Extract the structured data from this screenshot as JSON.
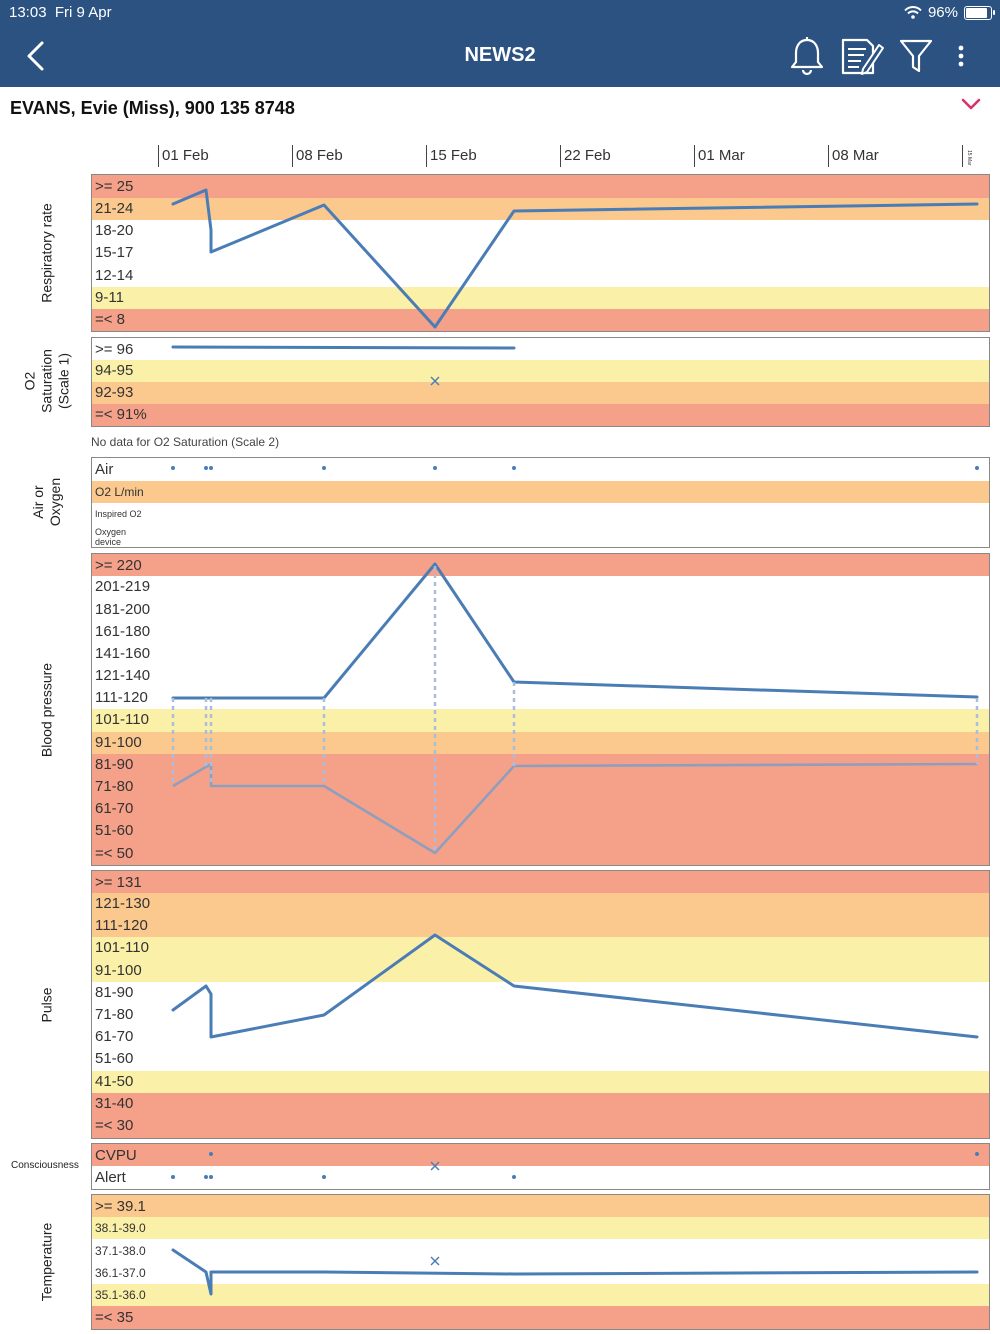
{
  "status_bar": {
    "time": "13:03",
    "date": "Fri 9 Apr",
    "battery": "96%",
    "wifi_icon": "wifi-icon",
    "battery_icon": "battery-icon"
  },
  "nav": {
    "title": "NEWS2",
    "icons": [
      "back-chevron-icon",
      "bell-icon",
      "edit-notes-icon",
      "filter-icon",
      "more-vertical-icon"
    ]
  },
  "patient": {
    "name": "EVANS, Evie (Miss), 900 135 8748"
  },
  "dates": [
    "01 Feb",
    "08 Feb",
    "15 Feb",
    "22 Feb",
    "01 Mar",
    "08 Mar",
    "15 Mar"
  ],
  "colors": {
    "accent": "#2c5282",
    "line": "#4a7db5",
    "red": "#f5a088",
    "orange": "#fbc88e",
    "yellow": "#fbf0a8"
  },
  "panels": {
    "respiratory": {
      "label": "Respiratory rate",
      "bands": [
        {
          "label": ">= 25",
          "color": "red"
        },
        {
          "label": "21-24",
          "color": "orange"
        },
        {
          "label": "18-20",
          "color": "white"
        },
        {
          "label": "15-17",
          "color": "white"
        },
        {
          "label": "12-14",
          "color": "white"
        },
        {
          "label": "9-11",
          "color": "yellow"
        },
        {
          "label": "=< 8",
          "color": "red"
        }
      ]
    },
    "o2": {
      "label_lines": [
        "O2",
        "Saturation",
        "(Scale 1)"
      ],
      "bands": [
        {
          "label": ">= 96",
          "color": "white"
        },
        {
          "label": "94-95",
          "color": "yellow"
        },
        {
          "label": "92-93",
          "color": "orange"
        },
        {
          "label": "=< 91%",
          "color": "red"
        }
      ]
    },
    "o2_scale2_note": "No data for O2 Saturation (Scale 2)",
    "air": {
      "label_lines": [
        "Air or",
        "Oxygen"
      ],
      "bands": [
        {
          "label": "Air",
          "color": "white"
        },
        {
          "label": "O2 L/min",
          "color": "orange"
        },
        {
          "label": "Inspired O2",
          "color": "white"
        },
        {
          "label": "Oxygen device",
          "color": "white"
        }
      ]
    },
    "bp": {
      "label": "Blood pressure",
      "bands": [
        {
          "label": ">= 220",
          "color": "red"
        },
        {
          "label": "201-219",
          "color": "white"
        },
        {
          "label": "181-200",
          "color": "white"
        },
        {
          "label": "161-180",
          "color": "white"
        },
        {
          "label": "141-160",
          "color": "white"
        },
        {
          "label": "121-140",
          "color": "white"
        },
        {
          "label": "111-120",
          "color": "white"
        },
        {
          "label": "101-110",
          "color": "yellow"
        },
        {
          "label": "91-100",
          "color": "orange"
        },
        {
          "label": "81-90",
          "color": "red"
        },
        {
          "label": "71-80",
          "color": "red"
        },
        {
          "label": "61-70",
          "color": "red"
        },
        {
          "label": "51-60",
          "color": "red"
        },
        {
          "label": "=< 50",
          "color": "red"
        }
      ]
    },
    "pulse": {
      "label": "Pulse",
      "bands": [
        {
          "label": ">= 131",
          "color": "red"
        },
        {
          "label": "121-130",
          "color": "orange"
        },
        {
          "label": "111-120",
          "color": "orange"
        },
        {
          "label": "101-110",
          "color": "yellow"
        },
        {
          "label": "91-100",
          "color": "yellow"
        },
        {
          "label": "81-90",
          "color": "white"
        },
        {
          "label": "71-80",
          "color": "white"
        },
        {
          "label": "61-70",
          "color": "white"
        },
        {
          "label": "51-60",
          "color": "white"
        },
        {
          "label": "41-50",
          "color": "yellow"
        },
        {
          "label": "31-40",
          "color": "red"
        },
        {
          "label": "=< 30",
          "color": "red"
        }
      ]
    },
    "consciousness": {
      "label": "Consciousness",
      "bands": [
        {
          "label": "CVPU",
          "color": "red"
        },
        {
          "label": "Alert",
          "color": "white"
        }
      ]
    },
    "temperature": {
      "label": "Temperature",
      "bands": [
        {
          "label": ">= 39.1",
          "color": "orange"
        },
        {
          "label": "38.1-39.0",
          "color": "yellow"
        },
        {
          "label": "37.1-38.0",
          "color": "white"
        },
        {
          "label": "36.1-37.0",
          "color": "white"
        },
        {
          "label": "35.1-36.0",
          "color": "yellow"
        },
        {
          "label": "=< 35",
          "color": "red"
        }
      ]
    }
  }
}
